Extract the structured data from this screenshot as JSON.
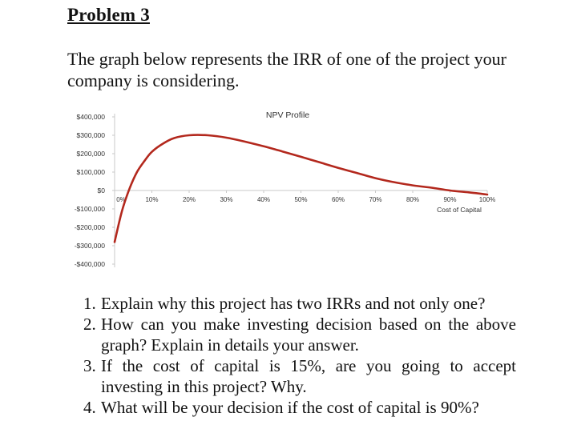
{
  "heading": "Problem 3",
  "intro": "The graph below represents the IRR of one of the project your company is considering.",
  "chart_data": {
    "type": "line",
    "title": "NPV Profile",
    "xlabel": "Cost of Capital",
    "ylabel": "",
    "x_ticks": [
      "0%",
      "10%",
      "20%",
      "30%",
      "40%",
      "50%",
      "60%",
      "70%",
      "80%",
      "90%",
      "100%"
    ],
    "y_ticks": [
      "$400,000",
      "$300,000",
      "$200,000",
      "$100,000",
      "$0",
      "-$100,000",
      "-$200,000",
      "-$300,000",
      "-$400,000"
    ],
    "xlim": [
      0,
      1
    ],
    "ylim": [
      -400000,
      400000
    ],
    "grid": false,
    "legend": "none",
    "series": [
      {
        "color": "#b3281d",
        "x": [
          0,
          0.02,
          0.04,
          0.06,
          0.08,
          0.1,
          0.13,
          0.16,
          0.2,
          0.25,
          0.3,
          0.35,
          0.4,
          0.45,
          0.5,
          0.55,
          0.6,
          0.65,
          0.7,
          0.75,
          0.8,
          0.85,
          0.9,
          0.95,
          1.0
        ],
        "y": [
          -280000,
          -110000,
          10000,
          100000,
          160000,
          210000,
          255000,
          285000,
          300000,
          300000,
          287000,
          265000,
          240000,
          212000,
          183000,
          153000,
          123000,
          95000,
          67000,
          45000,
          28000,
          15000,
          0,
          -10000,
          -22000
        ]
      }
    ]
  },
  "questions": [
    {
      "num": "1.",
      "text": "Explain why this project has two IRRs and not only one?"
    },
    {
      "num": "2.",
      "text": "How can you make investing decision based on the above graph? Explain in details your answer."
    },
    {
      "num": "3.",
      "text": "If the cost of capital is 15%, are you going to accept investing in this project? Why."
    },
    {
      "num": "4.",
      "text": "What will be your decision if the cost of capital is 90%?"
    }
  ]
}
